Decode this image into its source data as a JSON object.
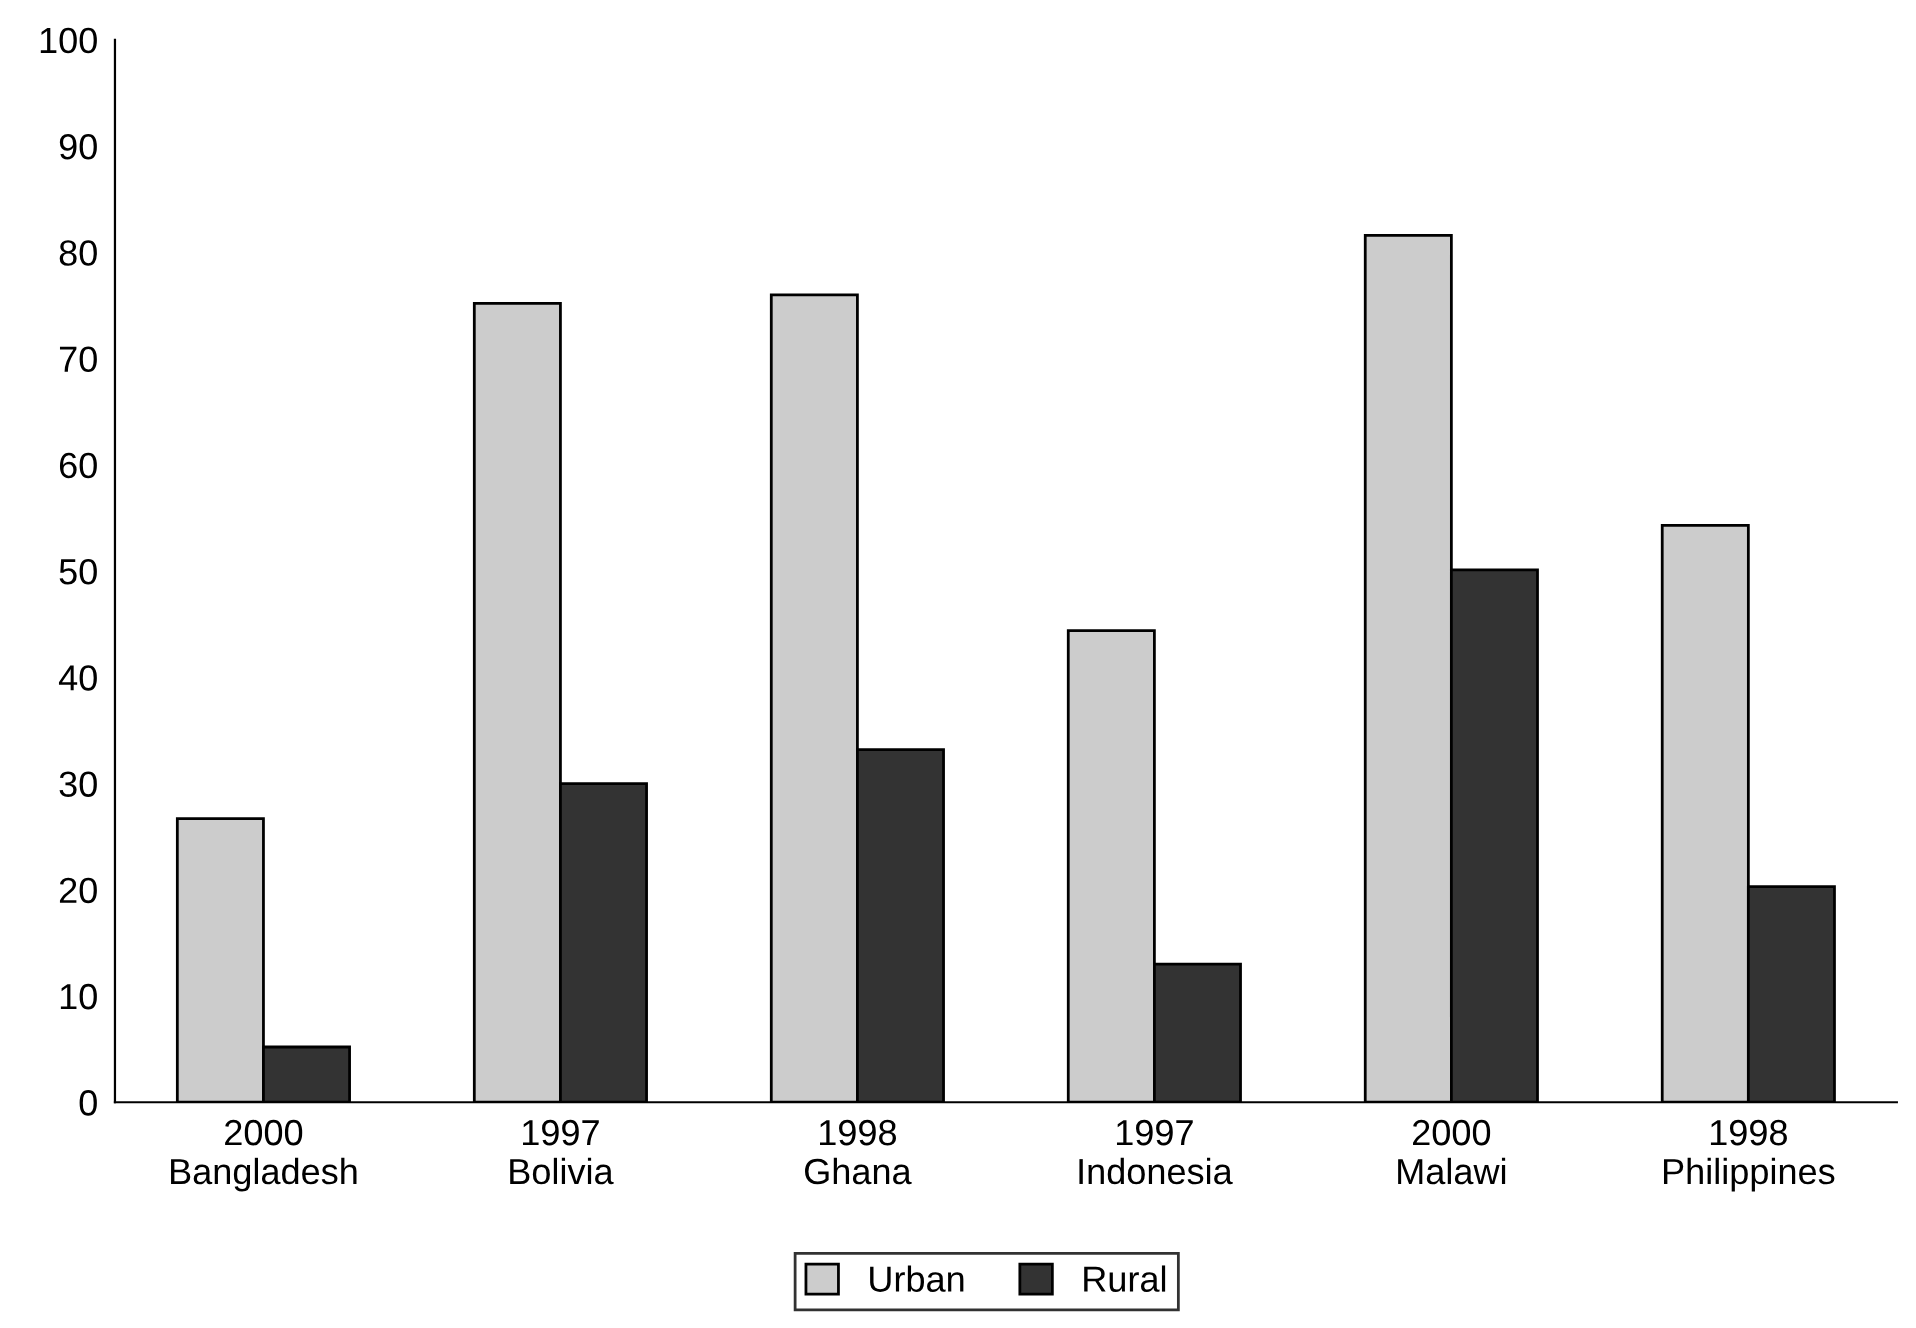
{
  "chart_data": {
    "type": "bar",
    "categories": [
      "2000\nBangladesh",
      "1997\nBolivia",
      "1998\nGhana",
      "1997\nIndonesia",
      "2000\nMalawi",
      "1998\nPhilippines"
    ],
    "series": [
      {
        "name": "Urban",
        "color": "#cccccc",
        "values": [
          26.7,
          75.2,
          76.0,
          44.4,
          81.6,
          54.3
        ]
      },
      {
        "name": "Rural",
        "color": "#333333",
        "values": [
          5.2,
          30.0,
          33.2,
          13.0,
          50.1,
          20.3
        ]
      }
    ],
    "ylim": [
      0,
      100
    ],
    "yticks": [
      0,
      10,
      20,
      30,
      40,
      50,
      60,
      70,
      80,
      90,
      100
    ],
    "grid": false,
    "legend": "bottom"
  }
}
